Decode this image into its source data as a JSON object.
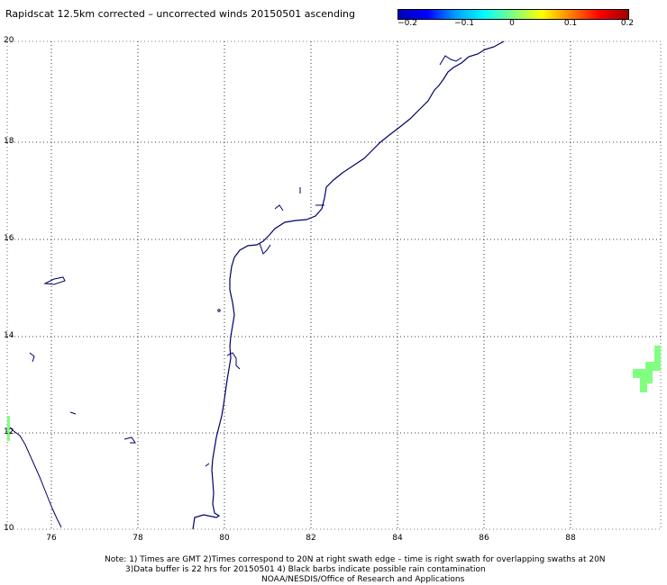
{
  "title": "Rapidscat 12.5km corrected – uncorrected winds 20150501 ascending",
  "colorbar": {
    "ticks": [
      "−0.2",
      "−0.1",
      "0",
      "0.1",
      "0.2"
    ],
    "colors": [
      "#0000b4",
      "#0000ff",
      "#00a0ff",
      "#00ffff",
      "#80ff80",
      "#ffff00",
      "#ff8000",
      "#ff0000",
      "#a00000"
    ]
  },
  "map": {
    "lat_labels": [
      "20",
      "18",
      "16",
      "14",
      "12",
      "10"
    ],
    "lon_labels": [
      "76",
      "78",
      "80",
      "82",
      "84",
      "86",
      "88"
    ],
    "coastline_color": "#000066",
    "data_patch_color": "#80ff80",
    "grid": true
  },
  "notes": {
    "line1": "Note: 1) Times are GMT 2)Times correspond to 20N at right swath edge – time is right swath for overlapping swaths at 20N",
    "line2": "3)Data buffer is 22 hrs for 20150501 4) Black barbs indicate possible rain contamination",
    "line3": "NOAA/NESDIS/Office of Research and Applications"
  }
}
